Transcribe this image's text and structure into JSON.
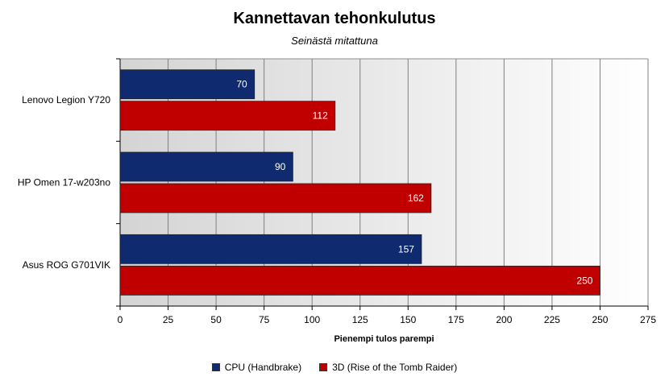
{
  "chart_data": {
    "type": "bar",
    "orientation": "horizontal",
    "title": "Kannettavan tehonkulutus",
    "subtitle": "Seinästä mitattuna",
    "xlabel": "Pienempi tulos parempi",
    "ylabel": "",
    "xlim": [
      0,
      275
    ],
    "xticks": [
      0,
      25,
      50,
      75,
      100,
      125,
      150,
      175,
      200,
      225,
      250,
      275
    ],
    "categories": [
      "Lenovo Legion Y720",
      "HP Omen 17-w203no",
      "Asus ROG G701VIK"
    ],
    "series": [
      {
        "name": "CPU (Handbrake)",
        "color": "#0f2a6e",
        "values": [
          70,
          90,
          157
        ]
      },
      {
        "name": "3D (Rise of the Tomb Raider)",
        "color": "#c00000",
        "values": [
          112,
          162,
          250
        ]
      }
    ],
    "grid": "vertical",
    "legend": "bottom"
  }
}
